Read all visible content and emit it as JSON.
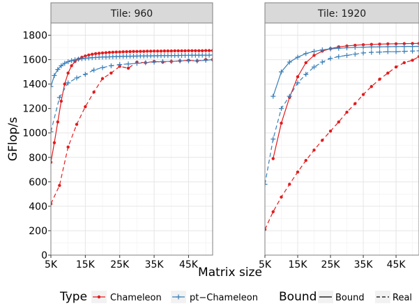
{
  "chart_data": {
    "type": "line",
    "xlabel": "Matrix size",
    "ylabel": "GFlop/s",
    "ylim": [
      0,
      1900
    ],
    "y_ticks": [
      0,
      200,
      400,
      600,
      800,
      1000,
      1200,
      1400,
      1600,
      1800
    ],
    "x_ticks": [
      5000,
      15000,
      25000,
      35000,
      45000
    ],
    "x_tick_labels": [
      "5K",
      "15K",
      "25K",
      "35K",
      "45K"
    ],
    "grid": true,
    "legend_position": "bottom",
    "legend": {
      "type_title": "Type",
      "type_entries": [
        {
          "label": "Chameleon",
          "color": "#e41a1c",
          "marker": "dot"
        },
        {
          "label": "pt−Chameleon",
          "color": "#377eb8",
          "marker": "plus"
        }
      ],
      "bound_title": "Bound",
      "bound_entries": [
        {
          "label": "Bound",
          "dash": "solid"
        },
        {
          "label": "Real",
          "dash": "dashed"
        }
      ]
    },
    "panels": [
      {
        "title": "Tile: 960",
        "xlim": [
          5000,
          52000
        ],
        "series": [
          {
            "type": "Chameleon",
            "bound": "Bound",
            "x": [
              5000,
              6000,
              7000,
              8000,
              9000,
              10000,
              11000,
              12000,
              13000,
              14000,
              15000,
              16000,
              17000,
              18000,
              19000,
              20000,
              21000,
              22000,
              23000,
              24000,
              25000,
              26000,
              27000,
              28000,
              29000,
              30000,
              31000,
              32000,
              33000,
              34000,
              35000,
              36000,
              37000,
              38000,
              39000,
              40000,
              41000,
              42000,
              43000,
              44000,
              45000,
              46000,
              47000,
              48000,
              49000,
              50000,
              51000,
              52000
            ],
            "y": [
              760,
              920,
              1090,
              1260,
              1400,
              1490,
              1550,
              1585,
              1605,
              1620,
              1630,
              1638,
              1644,
              1649,
              1652,
              1655,
              1657,
              1659,
              1661,
              1662,
              1663,
              1664,
              1665,
              1666,
              1667,
              1667,
              1668,
              1668,
              1669,
              1669,
              1670,
              1670,
              1670,
              1671,
              1671,
              1671,
              1672,
              1672,
              1672,
              1672,
              1673,
              1673,
              1673,
              1673,
              1673,
              1674,
              1674,
              1674
            ]
          },
          {
            "type": "Chameleon",
            "bound": "Real",
            "x": [
              5000,
              7500,
              10000,
              12500,
              15000,
              17500,
              20000,
              22500,
              25000,
              27500,
              30000,
              32500,
              35000,
              37500,
              40000,
              42500,
              45000,
              47500,
              50000,
              52000
            ],
            "y": [
              420,
              570,
              885,
              1070,
              1215,
              1335,
              1445,
              1490,
              1545,
              1530,
              1580,
              1575,
              1585,
              1580,
              1585,
              1590,
              1595,
              1590,
              1600,
              1600
            ]
          },
          {
            "type": "pt−Chameleon",
            "bound": "Bound",
            "x": [
              5000,
              6000,
              7000,
              8000,
              9000,
              10000,
              11000,
              12000,
              13000,
              14000,
              15000,
              16000,
              17000,
              18000,
              19000,
              20000,
              21000,
              22000,
              23000,
              24000,
              25000,
              26000,
              27000,
              28000,
              29000,
              30000,
              31000,
              32000,
              33000,
              34000,
              35000,
              36000,
              37000,
              38000,
              39000,
              40000,
              41000,
              42000,
              43000,
              44000,
              45000,
              46000,
              47000,
              48000,
              49000,
              50000,
              51000,
              52000
            ],
            "y": [
              1380,
              1470,
              1520,
              1550,
              1570,
              1583,
              1592,
              1599,
              1604,
              1608,
              1611,
              1614,
              1616,
              1618,
              1620,
              1621,
              1622,
              1623,
              1624,
              1625,
              1626,
              1627,
              1628,
              1628,
              1629,
              1629,
              1630,
              1630,
              1631,
              1631,
              1632,
              1632,
              1633,
              1633,
              1633,
              1634,
              1634,
              1634,
              1635,
              1635,
              1635,
              1636,
              1636,
              1636,
              1637,
              1637,
              1637,
              1638
            ]
          },
          {
            "type": "pt−Chameleon",
            "bound": "Real",
            "x": [
              5000,
              7500,
              10000,
              12500,
              15000,
              17500,
              20000,
              22500,
              25000,
              27500,
              30000,
              32500,
              35000,
              37500,
              40000,
              42500,
              45000,
              47500,
              50000,
              52000
            ],
            "y": [
              1010,
              1290,
              1410,
              1450,
              1480,
              1515,
              1535,
              1550,
              1560,
              1565,
              1570,
              1575,
              1580,
              1585,
              1585,
              1590,
              1590,
              1590,
              1595,
              1600
            ]
          }
        ]
      },
      {
        "title": "Tile: 1920",
        "xlim": [
          5000,
          52000
        ],
        "series": [
          {
            "type": "Chameleon",
            "bound": "Bound",
            "x": [
              7500,
              10000,
              12500,
              15000,
              17500,
              20000,
              22500,
              25000,
              27500,
              30000,
              32500,
              35000,
              37500,
              40000,
              42500,
              45000,
              47500,
              50000,
              52000
            ],
            "y": [
              790,
              1080,
              1290,
              1460,
              1575,
              1635,
              1670,
              1690,
              1705,
              1712,
              1718,
              1722,
              1725,
              1727,
              1729,
              1730,
              1731,
              1732,
              1733
            ]
          },
          {
            "type": "Chameleon",
            "bound": "Real",
            "x": [
              5000,
              7500,
              10000,
              12500,
              15000,
              17500,
              20000,
              22500,
              25000,
              27500,
              30000,
              32500,
              35000,
              37500,
              40000,
              42500,
              45000,
              47500,
              50000,
              52000
            ],
            "y": [
              210,
              355,
              475,
              580,
              680,
              775,
              860,
              940,
              1015,
              1090,
              1170,
              1240,
              1315,
              1380,
              1440,
              1490,
              1540,
              1575,
              1595,
              1625
            ]
          },
          {
            "type": "pt−Chameleon",
            "bound": "Bound",
            "x": [
              7500,
              10000,
              12500,
              15000,
              17500,
              20000,
              22500,
              25000,
              27500,
              30000,
              32500,
              35000,
              37500,
              40000,
              42500,
              45000,
              47500,
              50000,
              52000
            ],
            "y": [
              1300,
              1500,
              1580,
              1620,
              1650,
              1668,
              1680,
              1688,
              1693,
              1697,
              1700,
              1702,
              1704,
              1705,
              1706,
              1707,
              1708,
              1708,
              1709
            ]
          },
          {
            "type": "pt−Chameleon",
            "bound": "Real",
            "x": [
              5000,
              7500,
              10000,
              12500,
              15000,
              17500,
              20000,
              22500,
              25000,
              27500,
              30000,
              32500,
              35000,
              37500,
              40000,
              42500,
              45000,
              47500,
              50000,
              52000
            ],
            "y": [
              580,
              950,
              1200,
              1300,
              1410,
              1480,
              1540,
              1580,
              1610,
              1625,
              1635,
              1645,
              1655,
              1660,
              1662,
              1665,
              1665,
              1668,
              1670,
              1672
            ]
          }
        ]
      }
    ]
  }
}
